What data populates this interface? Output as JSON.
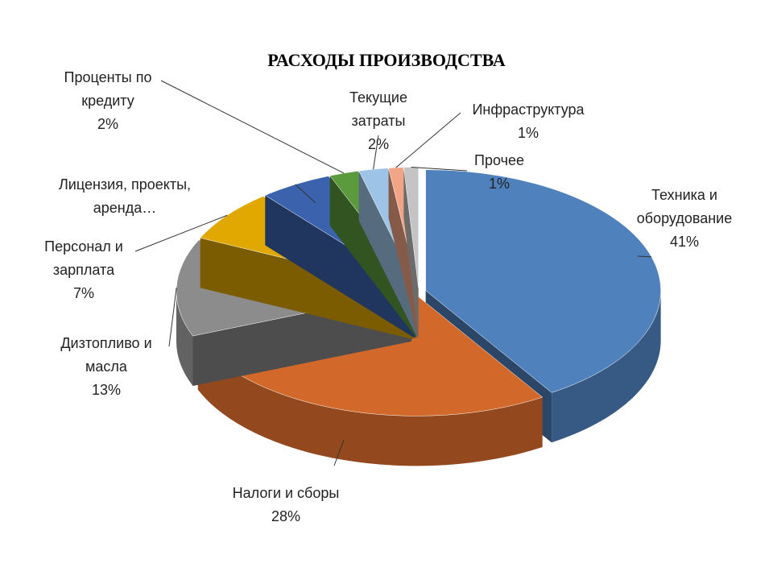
{
  "chart_data": {
    "type": "pie",
    "title": "РАСХОДЫ ПРОИЗВОДСТВА",
    "categories": [
      "Техника и оборудование",
      "Налоги и сборы",
      "Дизтопливо и масла",
      "Персонал и зарплата",
      "Лицензия, проекты, аренда…",
      "Проценты по кредиту",
      "Текущие затраты",
      "Инфраструктура",
      "Прочее"
    ],
    "values": [
      41,
      28,
      13,
      7,
      5,
      2,
      2,
      1,
      1
    ],
    "value_labels": [
      "41%",
      "28%",
      "13%",
      "7%",
      null,
      "2%",
      "2%",
      "1%",
      "1%"
    ],
    "colors": [
      "#4f81bd",
      "#d2692a",
      "#8c8c8c",
      "#e0a800",
      "#3b63ad",
      "#5b9a3d",
      "#9dc3e6",
      "#f2a586",
      "#c4c4c4"
    ]
  }
}
